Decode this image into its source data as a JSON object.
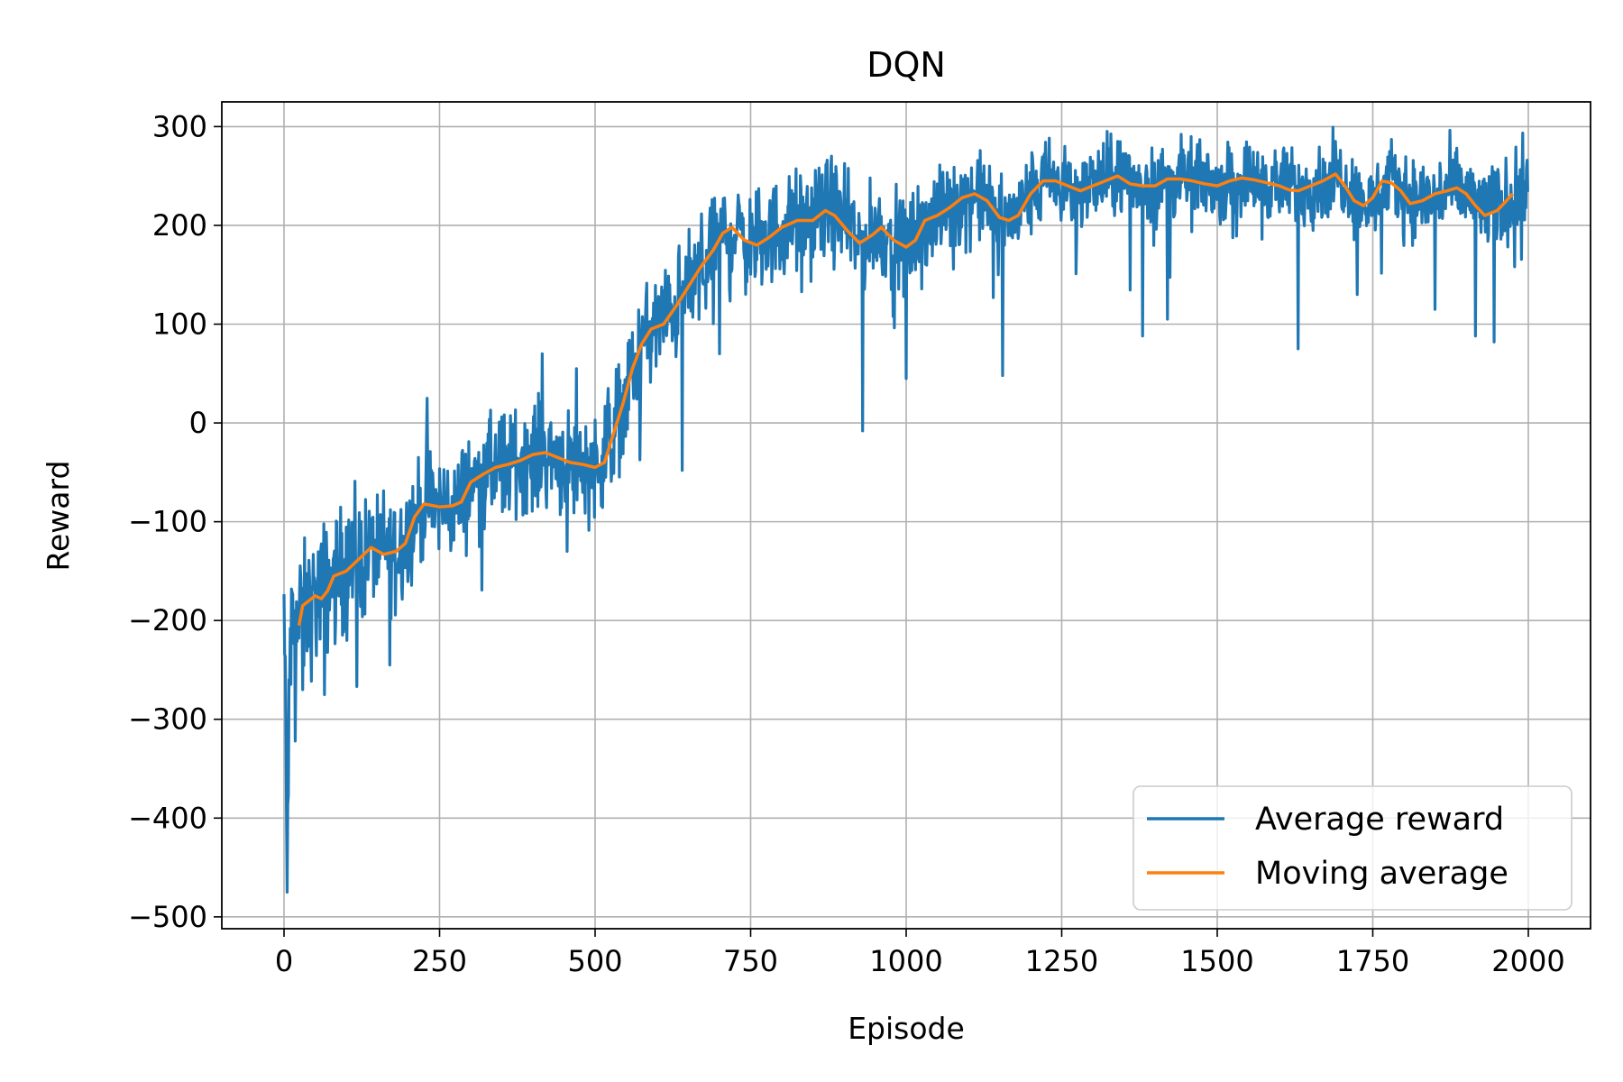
{
  "chart_data": {
    "type": "line",
    "title": "DQN",
    "xlabel": "Episode",
    "ylabel": "Reward",
    "xlim": [
      -100,
      2100
    ],
    "ylim": [
      -512,
      325
    ],
    "xticks": [
      0,
      250,
      500,
      750,
      1000,
      1250,
      1500,
      1750,
      2000
    ],
    "yticks": [
      300,
      200,
      100,
      0,
      -100,
      -200,
      -300,
      -400,
      -500
    ],
    "ytick_labels": [
      "300",
      "200",
      "100",
      "0",
      "−100",
      "−200",
      "−300",
      "−400",
      "−500"
    ],
    "grid": true,
    "legend_position": "lower-right",
    "series": [
      {
        "name": "Average reward",
        "color": "#1f77b4",
        "x_range": [
          0,
          1999
        ],
        "trend": [
          [
            0,
            -180
          ],
          [
            5,
            -460
          ],
          [
            10,
            -220
          ],
          [
            25,
            -200
          ],
          [
            50,
            -180
          ],
          [
            75,
            -160
          ],
          [
            100,
            -148
          ],
          [
            125,
            -138
          ],
          [
            150,
            -125
          ],
          [
            175,
            -130
          ],
          [
            200,
            -110
          ],
          [
            225,
            -82
          ],
          [
            250,
            -84
          ],
          [
            275,
            -84
          ],
          [
            300,
            -62
          ],
          [
            325,
            -50
          ],
          [
            350,
            -42
          ],
          [
            375,
            -38
          ],
          [
            400,
            -32
          ],
          [
            425,
            -30
          ],
          [
            450,
            -38
          ],
          [
            475,
            -42
          ],
          [
            500,
            -45
          ],
          [
            525,
            -15
          ],
          [
            550,
            30
          ],
          [
            575,
            80
          ],
          [
            600,
            100
          ],
          [
            625,
            112
          ],
          [
            650,
            140
          ],
          [
            675,
            160
          ],
          [
            700,
            190
          ],
          [
            725,
            195
          ],
          [
            750,
            180
          ],
          [
            775,
            188
          ],
          [
            800,
            198
          ],
          [
            825,
            205
          ],
          [
            850,
            205
          ],
          [
            875,
            218
          ],
          [
            900,
            205
          ],
          [
            925,
            180
          ],
          [
            950,
            195
          ],
          [
            975,
            188
          ],
          [
            1000,
            178
          ],
          [
            1025,
            198
          ],
          [
            1050,
            210
          ],
          [
            1075,
            220
          ],
          [
            1100,
            230
          ],
          [
            1125,
            228
          ],
          [
            1150,
            205
          ],
          [
            1175,
            208
          ],
          [
            1200,
            232
          ],
          [
            1225,
            245
          ],
          [
            1250,
            240
          ],
          [
            1275,
            235
          ],
          [
            1300,
            240
          ],
          [
            1325,
            248
          ],
          [
            1350,
            250
          ],
          [
            1375,
            240
          ],
          [
            1400,
            240
          ],
          [
            1425,
            245
          ],
          [
            1450,
            248
          ],
          [
            1475,
            246
          ],
          [
            1500,
            240
          ],
          [
            1525,
            245
          ],
          [
            1550,
            248
          ],
          [
            1575,
            245
          ],
          [
            1600,
            240
          ],
          [
            1625,
            238
          ],
          [
            1650,
            240
          ],
          [
            1675,
            245
          ],
          [
            1700,
            250
          ],
          [
            1725,
            228
          ],
          [
            1750,
            220
          ],
          [
            1775,
            245
          ],
          [
            1800,
            235
          ],
          [
            1825,
            225
          ],
          [
            1850,
            228
          ],
          [
            1875,
            238
          ],
          [
            1900,
            230
          ],
          [
            1925,
            218
          ],
          [
            1950,
            218
          ],
          [
            1975,
            228
          ],
          [
            1999,
            238
          ]
        ],
        "amplitude": [
          [
            0,
            40
          ],
          [
            250,
            28
          ],
          [
            500,
            30
          ],
          [
            750,
            28
          ],
          [
            1000,
            26
          ],
          [
            1500,
            20
          ],
          [
            1999,
            24
          ]
        ],
        "spikes": [
          [
            5,
            -475
          ],
          [
            3,
            -300
          ],
          [
            8,
            -260
          ],
          [
            30,
            -270
          ],
          [
            65,
            -275
          ],
          [
            170,
            -245
          ],
          [
            230,
            -160
          ],
          [
            355,
            -85
          ],
          [
            455,
            -130
          ],
          [
            640,
            -48
          ],
          [
            700,
            70
          ],
          [
            835,
            170
          ],
          [
            930,
            -8
          ],
          [
            1000,
            45
          ],
          [
            1155,
            48
          ],
          [
            1380,
            88
          ],
          [
            1420,
            105
          ],
          [
            1630,
            75
          ],
          [
            1725,
            130
          ],
          [
            1850,
            115
          ],
          [
            1915,
            88
          ],
          [
            1945,
            82
          ],
          [
            230,
            25
          ],
          [
            415,
            70
          ],
          [
            470,
            55
          ],
          [
            880,
            270
          ],
          [
            1255,
            280
          ],
          [
            1340,
            285
          ],
          [
            1690,
            285
          ]
        ]
      },
      {
        "name": "Moving average",
        "color": "#ff7f0e",
        "points": [
          [
            24,
            -205
          ],
          [
            30,
            -185
          ],
          [
            40,
            -180
          ],
          [
            50,
            -175
          ],
          [
            60,
            -178
          ],
          [
            70,
            -170
          ],
          [
            80,
            -155
          ],
          [
            100,
            -150
          ],
          [
            120,
            -138
          ],
          [
            140,
            -126
          ],
          [
            160,
            -133
          ],
          [
            180,
            -130
          ],
          [
            195,
            -122
          ],
          [
            210,
            -95
          ],
          [
            225,
            -82
          ],
          [
            250,
            -85
          ],
          [
            270,
            -84
          ],
          [
            285,
            -80
          ],
          [
            300,
            -60
          ],
          [
            320,
            -52
          ],
          [
            340,
            -45
          ],
          [
            360,
            -42
          ],
          [
            380,
            -38
          ],
          [
            400,
            -32
          ],
          [
            420,
            -30
          ],
          [
            440,
            -35
          ],
          [
            460,
            -40
          ],
          [
            480,
            -42
          ],
          [
            500,
            -45
          ],
          [
            515,
            -40
          ],
          [
            530,
            -10
          ],
          [
            545,
            20
          ],
          [
            560,
            55
          ],
          [
            575,
            80
          ],
          [
            590,
            95
          ],
          [
            610,
            100
          ],
          [
            630,
            118
          ],
          [
            650,
            138
          ],
          [
            670,
            158
          ],
          [
            690,
            175
          ],
          [
            705,
            192
          ],
          [
            720,
            198
          ],
          [
            740,
            185
          ],
          [
            760,
            180
          ],
          [
            780,
            188
          ],
          [
            800,
            198
          ],
          [
            825,
            205
          ],
          [
            850,
            205
          ],
          [
            870,
            215
          ],
          [
            885,
            210
          ],
          [
            905,
            195
          ],
          [
            925,
            182
          ],
          [
            945,
            190
          ],
          [
            960,
            198
          ],
          [
            980,
            185
          ],
          [
            1000,
            178
          ],
          [
            1015,
            185
          ],
          [
            1030,
            205
          ],
          [
            1050,
            210
          ],
          [
            1070,
            218
          ],
          [
            1090,
            228
          ],
          [
            1110,
            232
          ],
          [
            1130,
            225
          ],
          [
            1150,
            208
          ],
          [
            1165,
            205
          ],
          [
            1180,
            210
          ],
          [
            1200,
            232
          ],
          [
            1220,
            245
          ],
          [
            1240,
            245
          ],
          [
            1260,
            240
          ],
          [
            1280,
            235
          ],
          [
            1300,
            240
          ],
          [
            1320,
            245
          ],
          [
            1340,
            250
          ],
          [
            1360,
            242
          ],
          [
            1380,
            240
          ],
          [
            1400,
            240
          ],
          [
            1420,
            247
          ],
          [
            1440,
            247
          ],
          [
            1460,
            245
          ],
          [
            1480,
            242
          ],
          [
            1500,
            240
          ],
          [
            1520,
            245
          ],
          [
            1540,
            248
          ],
          [
            1560,
            246
          ],
          [
            1580,
            243
          ],
          [
            1600,
            240
          ],
          [
            1615,
            236
          ],
          [
            1630,
            235
          ],
          [
            1650,
            240
          ],
          [
            1670,
            245
          ],
          [
            1690,
            252
          ],
          [
            1705,
            240
          ],
          [
            1720,
            225
          ],
          [
            1735,
            220
          ],
          [
            1750,
            228
          ],
          [
            1765,
            245
          ],
          [
            1780,
            243
          ],
          [
            1795,
            235
          ],
          [
            1810,
            222
          ],
          [
            1830,
            225
          ],
          [
            1850,
            232
          ],
          [
            1870,
            235
          ],
          [
            1885,
            238
          ],
          [
            1900,
            232
          ],
          [
            1915,
            220
          ],
          [
            1930,
            210
          ],
          [
            1950,
            215
          ],
          [
            1965,
            225
          ],
          [
            1975,
            232
          ]
        ]
      }
    ]
  }
}
